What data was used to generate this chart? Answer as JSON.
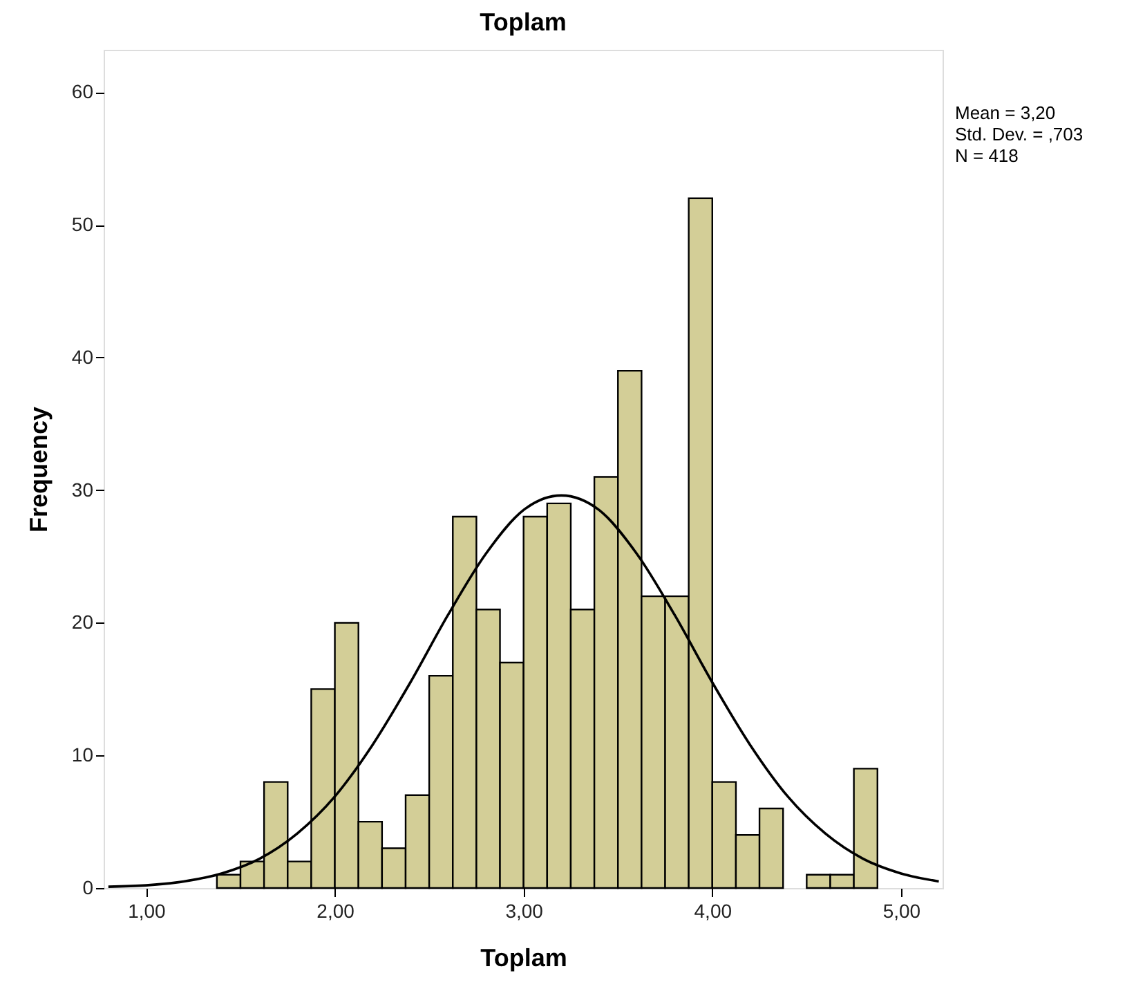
{
  "chart_data": {
    "type": "histogram",
    "title": "Toplam",
    "xlabel": "Toplam",
    "ylabel": "Frequency",
    "bins": [
      1.375,
      1.5,
      1.625,
      1.75,
      1.875,
      2.0,
      2.125,
      2.25,
      2.375,
      2.5,
      2.625,
      2.75,
      2.875,
      3.0,
      3.125,
      3.25,
      3.375,
      3.5,
      3.625,
      3.75,
      3.875,
      4.0,
      4.125,
      4.25,
      4.375,
      4.5,
      4.625,
      4.75,
      4.875
    ],
    "values": [
      1,
      2,
      8,
      2,
      15,
      20,
      5,
      3,
      7,
      16,
      28,
      21,
      17,
      28,
      29,
      21,
      31,
      39,
      22,
      22,
      52,
      8,
      4,
      6,
      0,
      1,
      1,
      9
    ],
    "color": "#d3ce97",
    "series": [
      {
        "type": "line",
        "color": "#000000",
        "x": [
          0.8,
          1.0,
          1.2,
          1.4,
          1.6,
          1.8,
          2.0,
          2.2,
          2.4,
          2.6,
          2.8,
          3.0,
          3.2,
          3.4,
          3.6,
          3.8,
          4.0,
          4.2,
          4.4,
          4.6,
          4.8,
          5.0,
          5.2
        ],
        "values": [
          0.1,
          0.2,
          0.5,
          1.1,
          2.2,
          4.1,
          6.9,
          10.8,
          15.5,
          20.6,
          25.2,
          28.5,
          29.6,
          28.5,
          25.2,
          20.6,
          15.5,
          10.8,
          6.9,
          4.1,
          2.2,
          1.1,
          0.5
        ]
      }
    ],
    "xlim": [
      0.775,
      5.22
    ],
    "ylim": [
      0,
      63.2
    ],
    "xticks": [
      {
        "value": 1,
        "label": "1,00"
      },
      {
        "value": 2,
        "label": "2,00"
      },
      {
        "value": 3,
        "label": "3,00"
      },
      {
        "value": 4,
        "label": "4,00"
      },
      {
        "value": 5,
        "label": "5,00"
      }
    ],
    "yticks": [
      0,
      10,
      20,
      30,
      40,
      50,
      60
    ],
    "annotations": [
      "Mean = 3,20",
      "Std. Dev. = ,703",
      "N = 418"
    ],
    "grid": false,
    "marker": "none",
    "line_style": "solid"
  }
}
